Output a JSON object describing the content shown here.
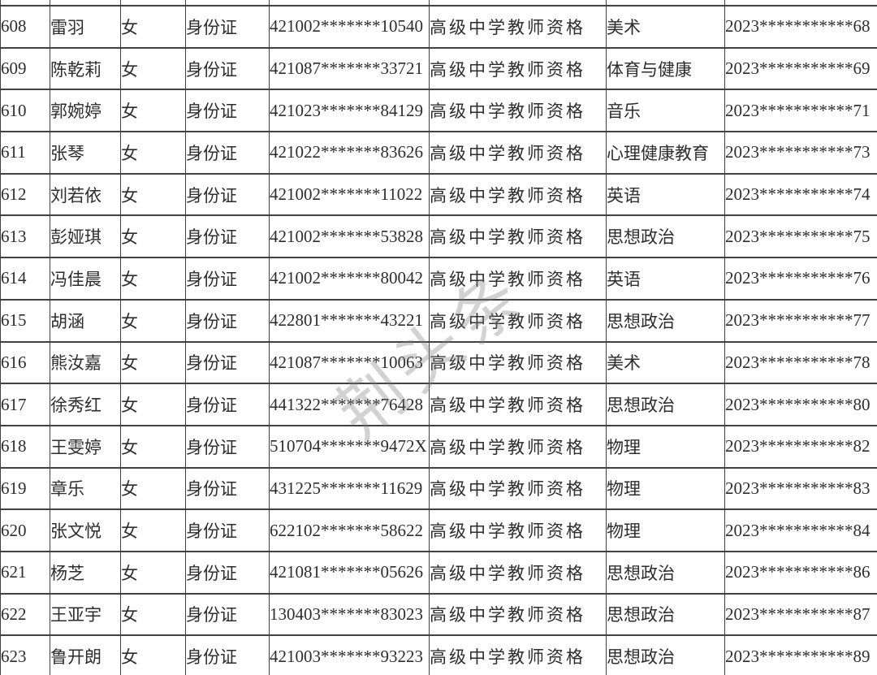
{
  "watermark": {
    "text": "荆头条"
  },
  "colors": {
    "background": "#ffffff",
    "border": "#414141",
    "text": "#2d2d2d",
    "watermark": "#d0d0d0"
  },
  "table": {
    "rows": [
      {
        "no": "608",
        "name": "雷羽",
        "gender": "女",
        "id_type": "身份证",
        "id_number": "421002*******10540",
        "qualification": "高级中学教师资格",
        "subject": "美术",
        "cert_number": "2023***********68"
      },
      {
        "no": "609",
        "name": "陈乾莉",
        "gender": "女",
        "id_type": "身份证",
        "id_number": "421087*******33721",
        "qualification": "高级中学教师资格",
        "subject": "体育与健康",
        "cert_number": "2023***********69"
      },
      {
        "no": "610",
        "name": "郭婉婷",
        "gender": "女",
        "id_type": "身份证",
        "id_number": "421023*******84129",
        "qualification": "高级中学教师资格",
        "subject": "音乐",
        "cert_number": "2023***********71"
      },
      {
        "no": "611",
        "name": "张琴",
        "gender": "女",
        "id_type": "身份证",
        "id_number": "421022*******83626",
        "qualification": "高级中学教师资格",
        "subject": "心理健康教育",
        "cert_number": "2023***********73"
      },
      {
        "no": "612",
        "name": "刘若依",
        "gender": "女",
        "id_type": "身份证",
        "id_number": "421002*******11022",
        "qualification": "高级中学教师资格",
        "subject": "英语",
        "cert_number": "2023***********74"
      },
      {
        "no": "613",
        "name": "彭娅琪",
        "gender": "女",
        "id_type": "身份证",
        "id_number": "421002*******53828",
        "qualification": "高级中学教师资格",
        "subject": "思想政治",
        "cert_number": "2023***********75"
      },
      {
        "no": "614",
        "name": "冯佳晨",
        "gender": "女",
        "id_type": "身份证",
        "id_number": "421002*******80042",
        "qualification": "高级中学教师资格",
        "subject": "英语",
        "cert_number": "2023***********76"
      },
      {
        "no": "615",
        "name": "胡涵",
        "gender": "女",
        "id_type": "身份证",
        "id_number": "422801*******43221",
        "qualification": "高级中学教师资格",
        "subject": "思想政治",
        "cert_number": "2023***********77"
      },
      {
        "no": "616",
        "name": "熊汝嘉",
        "gender": "女",
        "id_type": "身份证",
        "id_number": "421087*******10063",
        "qualification": "高级中学教师资格",
        "subject": "美术",
        "cert_number": "2023***********78"
      },
      {
        "no": "617",
        "name": "徐秀红",
        "gender": "女",
        "id_type": "身份证",
        "id_number": "441322*******76428",
        "qualification": "高级中学教师资格",
        "subject": "思想政治",
        "cert_number": "2023***********80"
      },
      {
        "no": "618",
        "name": "王雯婷",
        "gender": "女",
        "id_type": "身份证",
        "id_number": "510704*******9472X",
        "qualification": "高级中学教师资格",
        "subject": "物理",
        "cert_number": "2023***********82"
      },
      {
        "no": "619",
        "name": "章乐",
        "gender": "女",
        "id_type": "身份证",
        "id_number": "431225*******11629",
        "qualification": "高级中学教师资格",
        "subject": "物理",
        "cert_number": "2023***********83"
      },
      {
        "no": "620",
        "name": "张文悦",
        "gender": "女",
        "id_type": "身份证",
        "id_number": "622102*******58622",
        "qualification": "高级中学教师资格",
        "subject": "物理",
        "cert_number": "2023***********84"
      },
      {
        "no": "621",
        "name": "杨芝",
        "gender": "女",
        "id_type": "身份证",
        "id_number": "421081*******05626",
        "qualification": "高级中学教师资格",
        "subject": "思想政治",
        "cert_number": "2023***********86"
      },
      {
        "no": "622",
        "name": "王亚宇",
        "gender": "女",
        "id_type": "身份证",
        "id_number": "130403*******83023",
        "qualification": "高级中学教师资格",
        "subject": "思想政治",
        "cert_number": "2023***********87"
      },
      {
        "no": "623",
        "name": "鲁开朗",
        "gender": "女",
        "id_type": "身份证",
        "id_number": "421003*******93223",
        "qualification": "高级中学教师资格",
        "subject": "思想政治",
        "cert_number": "2023***********89"
      }
    ]
  }
}
